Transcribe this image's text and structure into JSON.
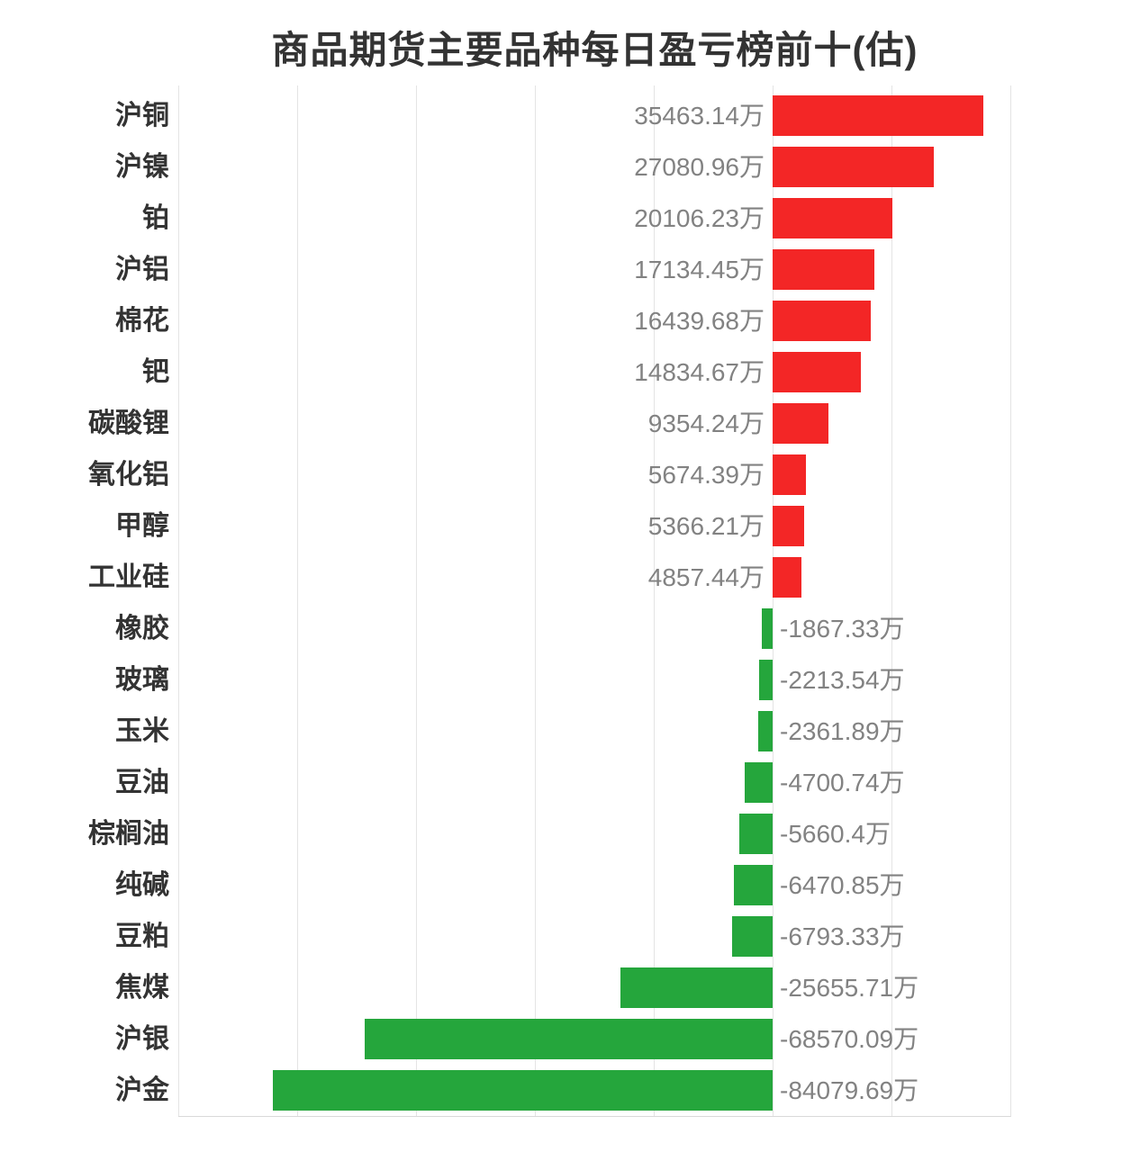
{
  "chart_data": {
    "type": "bar",
    "orientation": "horizontal",
    "title": "商品期货主要品种每日盈亏榜前十(估)",
    "unit": "万",
    "categories": [
      "沪铜",
      "沪镍",
      "铂",
      "沪铝",
      "棉花",
      "钯",
      "碳酸锂",
      "氧化铝",
      "甲醇",
      "工业硅",
      "橡胶",
      "玻璃",
      "玉米",
      "豆油",
      "棕榈油",
      "纯碱",
      "豆粕",
      "焦煤",
      "沪银",
      "沪金"
    ],
    "values": [
      35463.14,
      27080.96,
      20106.23,
      17134.45,
      16439.68,
      14834.67,
      9354.24,
      5674.39,
      5366.21,
      4857.44,
      -1867.33,
      -2213.54,
      -2361.89,
      -4700.74,
      -5660.4,
      -6470.85,
      -6793.33,
      -25655.71,
      -68570.09,
      -84079.69
    ],
    "value_labels": [
      "35463.14万",
      "27080.96万",
      "20106.23万",
      "17134.45万",
      "16439.68万",
      "14834.67万",
      "9354.24万",
      "5674.39万",
      "5366.21万",
      "4857.44万",
      "-1867.33万",
      "-2213.54万",
      "-2361.89万",
      "-4700.74万",
      "-5660.4万",
      "-6470.85万",
      "-6793.33万",
      "-25655.71万",
      "-68570.09万",
      "-84079.69万"
    ],
    "xlim": [
      -100000,
      40000
    ],
    "grid_interval": 20000,
    "grid": true,
    "legend": "none",
    "colors": {
      "positive_bar": "#f32626",
      "negative_bar": "#25a63c",
      "title": "#333333",
      "category_label": "#333333",
      "value_label": "#828282",
      "gridline": "#e4e4e4",
      "axis_line": "#d9d9d9",
      "background": "#ffffff"
    }
  }
}
